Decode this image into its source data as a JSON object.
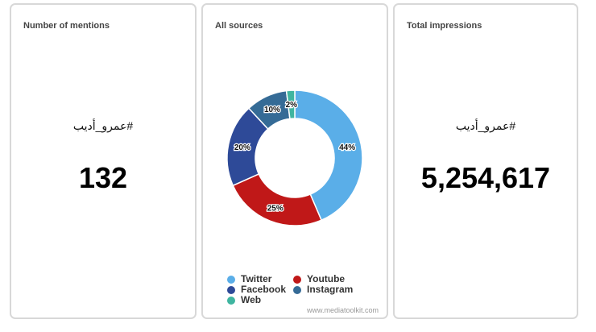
{
  "cards": {
    "mentions": {
      "title": "Number of mentions",
      "hashtag": "#عمرو_أديب",
      "value": "132"
    },
    "sources": {
      "title": "All sources",
      "credit": "www.mediatoolkit.com"
    },
    "impressions": {
      "title": "Total impressions",
      "hashtag": "#عمرو_أديب",
      "value": "5,254,617"
    }
  },
  "chart_data": {
    "type": "pie",
    "title": "All sources",
    "series": [
      {
        "name": "Twitter",
        "value": 44,
        "label": "44%",
        "color": "#5aaee8"
      },
      {
        "name": "Youtube",
        "value": 25,
        "label": "25%",
        "color": "#c01818"
      },
      {
        "name": "Facebook",
        "value": 20,
        "label": "20%",
        "color": "#2e4a98"
      },
      {
        "name": "Instagram",
        "value": 10,
        "label": "10%",
        "color": "#356b96"
      },
      {
        "name": "Web",
        "value": 2,
        "label": "2%",
        "color": "#3fb5a0"
      }
    ],
    "legend_order": [
      "Twitter",
      "Youtube",
      "Facebook",
      "Instagram",
      "Web"
    ],
    "legend_placement": "bottom",
    "donut": true
  }
}
